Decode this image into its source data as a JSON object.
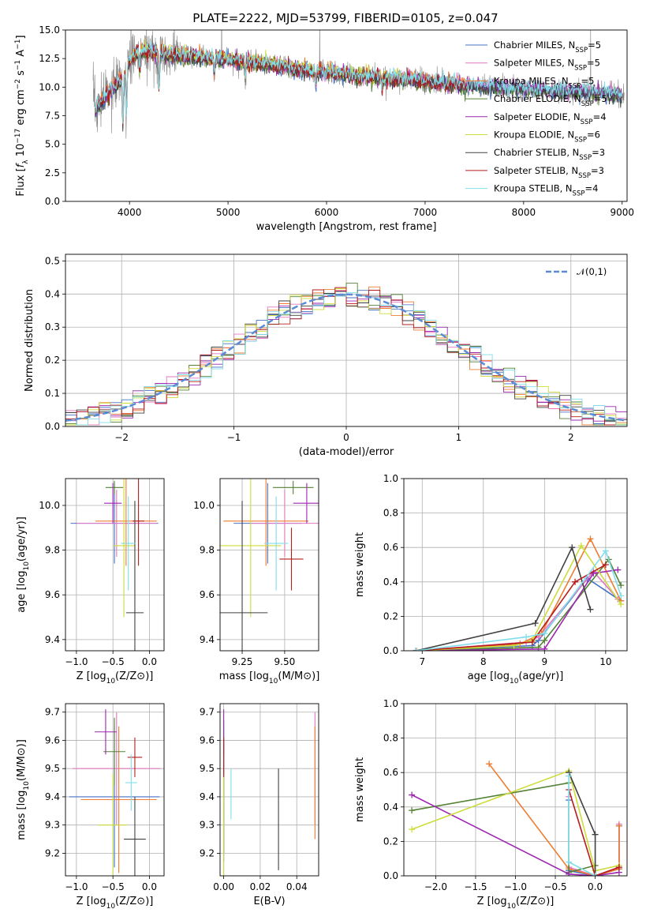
{
  "title": "PLATE=2222, MJD=53799, FIBERID=0105, z=0.047",
  "models": [
    {
      "name": "Chabrier MILES, N",
      "sub": "SSP",
      "suffix": "=5",
      "color": "#4472c4"
    },
    {
      "name": "Salpeter MILES, N",
      "sub": "SSP",
      "suffix": "=5",
      "color": "#e377c2"
    },
    {
      "name": "Kroupa MILES, N",
      "sub": "SSP",
      "suffix": "=5",
      "color": "#ed7d31"
    },
    {
      "name": "Chabrier ELODIE, N",
      "sub": "SSP",
      "suffix": "=5",
      "color": "#548235"
    },
    {
      "name": "Salpeter ELODIE, N",
      "sub": "SSP",
      "suffix": "=4",
      "color": "#9c27b0"
    },
    {
      "name": "Kroupa ELODIE, N",
      "sub": "SSP",
      "suffix": "=6",
      "color": "#cddc39"
    },
    {
      "name": "Chabrier STELIB, N",
      "sub": "SSP",
      "suffix": "=3",
      "color": "#404040"
    },
    {
      "name": "Salpeter STELIB, N",
      "sub": "SSP",
      "suffix": "=3",
      "color": "#b71c1c"
    },
    {
      "name": "Kroupa STELIB, N",
      "sub": "SSP",
      "suffix": "=4",
      "color": "#80deea"
    }
  ],
  "chart_data": [
    {
      "id": "spectrum",
      "type": "line",
      "xlabel": "wavelength [Angstrom, rest frame]",
      "ylabel": "Flux [fλ 10^-17 erg cm^-2 s^-1 A^-1]",
      "xlim": [
        3350,
        9050
      ],
      "ylim": [
        0,
        15
      ],
      "xticks": [
        4000,
        5000,
        6000,
        7000,
        8000,
        9000
      ],
      "yticks": [
        0.0,
        2.5,
        5.0,
        7.5,
        10.0,
        12.5,
        15.0
      ],
      "data_color": "#808080",
      "continuum": {
        "x": [
          3650,
          3750,
          3900,
          4000,
          4100,
          4300,
          4500,
          4800,
          5000,
          5200,
          5500,
          5800,
          6000,
          6300,
          6600,
          6800,
          7000,
          7200,
          7400,
          7600,
          7800,
          8000,
          8200,
          8400,
          8600,
          8800,
          9000
        ],
        "y": [
          8.0,
          9.0,
          10.5,
          12.3,
          13.2,
          13.0,
          12.8,
          12.6,
          12.4,
          12.2,
          11.9,
          11.5,
          11.3,
          11.0,
          10.8,
          10.7,
          10.5,
          10.3,
          10.2,
          10.1,
          10.0,
          9.9,
          9.8,
          9.7,
          9.6,
          9.5,
          9.4
        ]
      },
      "grid": false,
      "legend": "top-right"
    },
    {
      "id": "residual-hist",
      "type": "step",
      "xlabel": "(data-model)/error",
      "ylabel": "Normed distribution",
      "xlim": [
        -2.5,
        2.5
      ],
      "ylim": [
        0,
        0.52
      ],
      "xticks": [
        -2,
        -1,
        0,
        1,
        2
      ],
      "yticks": [
        0.0,
        0.1,
        0.2,
        0.3,
        0.4,
        0.5
      ],
      "reference": {
        "name": "𝒩(0,1)",
        "color": "#5b8bd5"
      },
      "grid": true,
      "legend": "top-right"
    },
    {
      "id": "z-vs-age",
      "type": "errorbar",
      "xlabel": "Z [log10(Z/Z⊙)]",
      "ylabel": "age [log10(age/yr)]",
      "xlim": [
        -1.15,
        0.2
      ],
      "ylim": [
        9.35,
        10.12
      ],
      "xticks": [
        -1.0,
        -0.5,
        0.0
      ],
      "yticks": [
        9.4,
        9.6,
        9.8,
        10.0
      ],
      "points": [
        {
          "x": -0.48,
          "xerr": 0.6,
          "y": 9.92,
          "yerr": 0.18
        },
        {
          "x": -0.45,
          "xerr": 0.55,
          "y": 9.92,
          "yerr": 0.15
        },
        {
          "x": -0.32,
          "xerr": 0.42,
          "y": 9.93,
          "yerr": 0.2
        },
        {
          "x": -0.48,
          "xerr": 0.12,
          "y": 10.08,
          "yerr": 0.03
        },
        {
          "x": -0.5,
          "xerr": 0.12,
          "y": 10.01,
          "yerr": 0.09
        },
        {
          "x": -0.35,
          "xerr": 0.15,
          "y": 9.82,
          "yerr": 0.32
        },
        {
          "x": -0.2,
          "xerr": 0.12,
          "y": 9.52,
          "yerr": 0.5
        },
        {
          "x": -0.15,
          "xerr": 0.08,
          "y": 9.93,
          "yerr": 0.2
        },
        {
          "x": -0.29,
          "xerr": 0.1,
          "y": 9.83,
          "yerr": 0.21
        }
      ]
    },
    {
      "id": "mass-vs-age",
      "type": "errorbar",
      "xlabel": "mass [log10(M/M⊙)]",
      "ylabel": "",
      "xlim": [
        9.12,
        9.7
      ],
      "ylim": [
        9.35,
        10.12
      ],
      "xticks": [
        9.25,
        9.5
      ],
      "xticklabels": [
        "9.25",
        "9.50"
      ],
      "yticks": [
        9.4,
        9.6,
        9.8,
        10.0
      ],
      "points": [
        {
          "x": 9.4,
          "xerr": 0.2,
          "y": 9.92,
          "yerr": 0.18
        },
        {
          "x": 9.5,
          "xerr": 0.2,
          "y": 9.92,
          "yerr": 0.15
        },
        {
          "x": 9.39,
          "xerr": 0.25,
          "y": 9.93,
          "yerr": 0.2
        },
        {
          "x": 9.55,
          "xerr": 0.12,
          "y": 10.08,
          "yerr": 0.03
        },
        {
          "x": 9.63,
          "xerr": 0.08,
          "y": 10.01,
          "yerr": 0.09
        },
        {
          "x": 9.3,
          "xerr": 0.18,
          "y": 9.82,
          "yerr": 0.32
        },
        {
          "x": 9.25,
          "xerr": 0.15,
          "y": 9.52,
          "yerr": 0.5
        },
        {
          "x": 9.54,
          "xerr": 0.07,
          "y": 9.76,
          "yerr": 0.14
        },
        {
          "x": 9.45,
          "xerr": 0.07,
          "y": 9.83,
          "yerr": 0.21
        }
      ]
    },
    {
      "id": "age-vs-weight",
      "type": "line",
      "xlabel": "age  [log10(age/yr)]",
      "ylabel": "mass weight",
      "xlim": [
        6.7,
        10.35
      ],
      "ylim": [
        0,
        1.0
      ],
      "xticks": [
        7,
        8,
        9,
        10
      ],
      "yticks": [
        0.0,
        0.2,
        0.4,
        0.6,
        0.8,
        1.0
      ],
      "series": [
        {
          "x": [
            6.9,
            8.8,
            8.9,
            9.7,
            10.25
          ],
          "y": [
            0.0,
            0.03,
            0.06,
            0.42,
            0.29
          ]
        },
        {
          "x": [
            6.9,
            8.7,
            8.9,
            9.8,
            10.2
          ],
          "y": [
            0.0,
            0.05,
            0.08,
            0.46,
            0.3
          ]
        },
        {
          "x": [
            6.9,
            8.6,
            8.95,
            9.75,
            10.25
          ],
          "y": [
            0.0,
            0.04,
            0.1,
            0.65,
            0.29
          ]
        },
        {
          "x": [
            6.9,
            8.9,
            9.0,
            10.05,
            10.25
          ],
          "y": [
            0.0,
            0.02,
            0.06,
            0.53,
            0.38
          ]
        },
        {
          "x": [
            6.9,
            9.0,
            9.8,
            10.2
          ],
          "y": [
            0.0,
            0.01,
            0.45,
            0.47
          ]
        },
        {
          "x": [
            6.9,
            8.5,
            8.8,
            9.6,
            10.25
          ],
          "y": [
            0.0,
            0.03,
            0.06,
            0.61,
            0.27
          ]
        },
        {
          "x": [
            6.9,
            8.85,
            9.45,
            9.75
          ],
          "y": [
            0.0,
            0.16,
            0.6,
            0.24
          ]
        },
        {
          "x": [
            6.9,
            8.8,
            9.5,
            10.0
          ],
          "y": [
            0.0,
            0.05,
            0.4,
            0.5
          ]
        },
        {
          "x": [
            6.9,
            8.7,
            9.0,
            10.0,
            10.25
          ],
          "y": [
            0.0,
            0.08,
            0.1,
            0.58,
            0.32
          ]
        }
      ]
    },
    {
      "id": "z-vs-mass",
      "type": "errorbar",
      "xlabel": "Z [log10(Z/Z⊙)]",
      "ylabel": "mass [log10(M/M⊙)]",
      "xlim": [
        -1.15,
        0.2
      ],
      "ylim": [
        9.12,
        9.73
      ],
      "xticks": [
        -1.0,
        -0.5,
        0.0
      ],
      "yticks": [
        9.2,
        9.3,
        9.4,
        9.5,
        9.6,
        9.7
      ],
      "points": [
        {
          "x": -0.48,
          "xerr": 0.62,
          "y": 9.4,
          "yerr": 0.25
        },
        {
          "x": -0.45,
          "xerr": 0.6,
          "y": 9.5,
          "yerr": 0.2
        },
        {
          "x": -0.42,
          "xerr": 0.52,
          "y": 9.39,
          "yerr": 0.26
        },
        {
          "x": -0.48,
          "xerr": 0.15,
          "y": 9.56,
          "yerr": 0.12
        },
        {
          "x": -0.6,
          "xerr": 0.15,
          "y": 9.63,
          "yerr": 0.08
        },
        {
          "x": -0.5,
          "xerr": 0.2,
          "y": 9.3,
          "yerr": 0.18
        },
        {
          "x": -0.2,
          "xerr": 0.15,
          "y": 9.25,
          "yerr": 0.15
        },
        {
          "x": -0.2,
          "xerr": 0.1,
          "y": 9.54,
          "yerr": 0.07
        },
        {
          "x": -0.25,
          "xerr": 0.08,
          "y": 9.45,
          "yerr": 0.1
        }
      ]
    },
    {
      "id": "ebv-vs-mass",
      "type": "errorbar",
      "xlabel": "E(B-V)",
      "ylabel": "",
      "xlim": [
        -0.002,
        0.052
      ],
      "ylim": [
        9.12,
        9.73
      ],
      "xticks": [
        0.0,
        0.02,
        0.04
      ],
      "xticklabels": [
        "0.00",
        "0.02",
        "0.04"
      ],
      "yticks": [
        9.2,
        9.3,
        9.4,
        9.5,
        9.6,
        9.7
      ],
      "points": [
        {
          "x": 0.0,
          "xerr": 0,
          "y": 9.42,
          "yerr": 0.25
        },
        {
          "x": 0.05,
          "xerr": 0,
          "y": 9.5,
          "yerr": 0.2
        },
        {
          "x": 0.05,
          "xerr": 0,
          "y": 9.45,
          "yerr": 0.2
        },
        {
          "x": 0.0,
          "xerr": 0,
          "y": 9.4,
          "yerr": 0.2
        },
        {
          "x": 0.0,
          "xerr": 0,
          "y": 9.63,
          "yerr": 0.08
        },
        {
          "x": 0.0,
          "xerr": 0,
          "y": 9.3,
          "yerr": 0.18
        },
        {
          "x": 0.03,
          "xerr": 0,
          "y": 9.32,
          "yerr": 0.18
        },
        {
          "x": 0.0,
          "xerr": 0,
          "y": 9.54,
          "yerr": 0.07
        },
        {
          "x": 0.004,
          "xerr": 0,
          "y": 9.41,
          "yerr": 0.09
        }
      ]
    },
    {
      "id": "z-vs-weight",
      "type": "line",
      "xlabel": "Z [log10(Z/Z⊙)]",
      "ylabel": "mass weight",
      "xlim": [
        -2.4,
        0.4
      ],
      "ylim": [
        0,
        1.0
      ],
      "xticks": [
        -2.0,
        -1.5,
        -1.0,
        -0.5,
        0.0
      ],
      "yticks": [
        0.0,
        0.2,
        0.4,
        0.6,
        0.8,
        1.0
      ],
      "series": [
        {
          "x": [
            -0.33,
            -0.33,
            0.0,
            0.3,
            0.3
          ],
          "y": [
            0.44,
            0.03,
            0.0,
            0.04,
            0.29
          ]
        },
        {
          "x": [
            -0.33,
            -0.33,
            0.0,
            0.3,
            0.3
          ],
          "y": [
            0.46,
            0.05,
            0.0,
            0.05,
            0.3
          ]
        },
        {
          "x": [
            -1.33,
            -0.33,
            0.0,
            0.3,
            0.3
          ],
          "y": [
            0.65,
            0.04,
            0.0,
            0.04,
            0.29
          ]
        },
        {
          "x": [
            -2.3,
            -0.33,
            -0.33,
            0.0
          ],
          "y": [
            0.38,
            0.54,
            0.02,
            0.06
          ]
        },
        {
          "x": [
            -2.3,
            -0.33,
            0.0,
            0.3
          ],
          "y": [
            0.47,
            0.01,
            0.0,
            0.02
          ]
        },
        {
          "x": [
            -2.3,
            -0.33,
            0.0,
            0.3
          ],
          "y": [
            0.27,
            0.61,
            0.03,
            0.06
          ]
        },
        {
          "x": [
            -0.33,
            0.0,
            0.0
          ],
          "y": [
            0.6,
            0.24,
            0.0
          ]
        },
        {
          "x": [
            -0.33,
            0.0,
            0.3
          ],
          "y": [
            0.5,
            0.0,
            0.05
          ]
        },
        {
          "x": [
            -0.33,
            -0.33,
            0.0
          ],
          "y": [
            0.58,
            0.08,
            0.0
          ]
        }
      ]
    }
  ]
}
